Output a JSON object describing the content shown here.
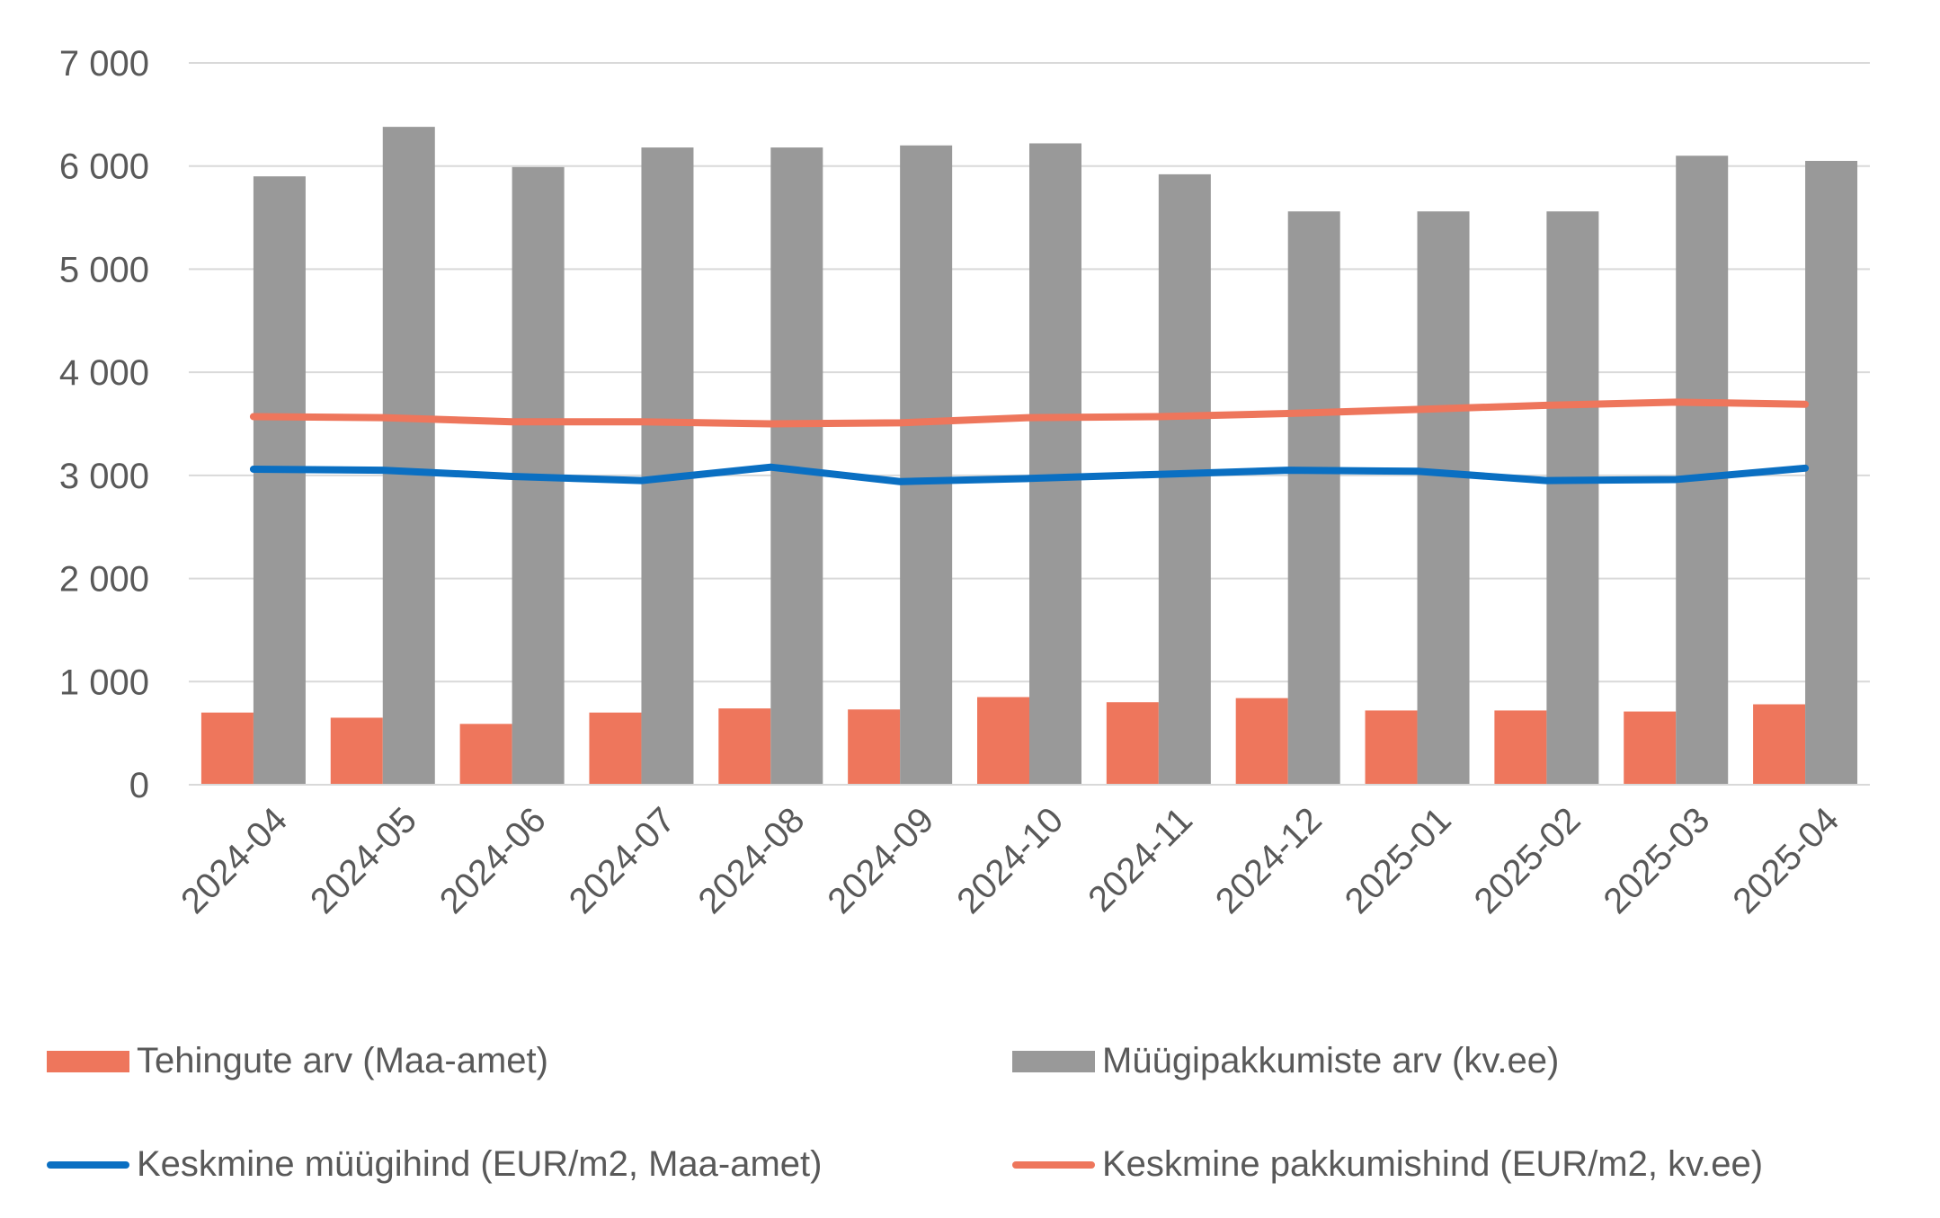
{
  "chart_data": {
    "type": "bar",
    "categories": [
      "2024-04",
      "2024-05",
      "2024-06",
      "2024-07",
      "2024-08",
      "2024-09",
      "2024-10",
      "2024-11",
      "2024-12",
      "2025-01",
      "2025-02",
      "2025-03",
      "2025-04"
    ],
    "ylim": [
      0,
      7000
    ],
    "yticks": [
      0,
      1000,
      2000,
      3000,
      4000,
      5000,
      6000,
      7000
    ],
    "ytick_labels": [
      "0",
      "1 000",
      "2 000",
      "3 000",
      "4 000",
      "5 000",
      "6 000",
      "7 000"
    ],
    "grid": true,
    "legend_position": "bottom",
    "series": [
      {
        "name": "Tehingute arv (Maa-amet)",
        "kind": "bar",
        "color": "#EE765C",
        "values": [
          700,
          650,
          590,
          700,
          740,
          730,
          850,
          800,
          840,
          720,
          720,
          710,
          780
        ]
      },
      {
        "name": "Müügipakkumiste arv (kv.ee)",
        "kind": "bar",
        "color": "#999999",
        "values": [
          5900,
          6380,
          5990,
          6180,
          6180,
          6200,
          6220,
          5920,
          5560,
          5560,
          5560,
          6100,
          6050
        ]
      },
      {
        "name": "Keskmine müügihind (EUR/m2, Maa-amet)",
        "kind": "line",
        "color": "#0A6FC2",
        "values": [
          3060,
          3050,
          2990,
          2950,
          3080,
          2940,
          2970,
          3010,
          3050,
          3040,
          2950,
          2960,
          3070
        ]
      },
      {
        "name": "Keskmine pakkumishind (EUR/m2, kv.ee)",
        "kind": "line",
        "color": "#EE765C",
        "values": [
          3570,
          3560,
          3520,
          3520,
          3500,
          3510,
          3560,
          3570,
          3600,
          3640,
          3680,
          3710,
          3690
        ]
      }
    ]
  }
}
